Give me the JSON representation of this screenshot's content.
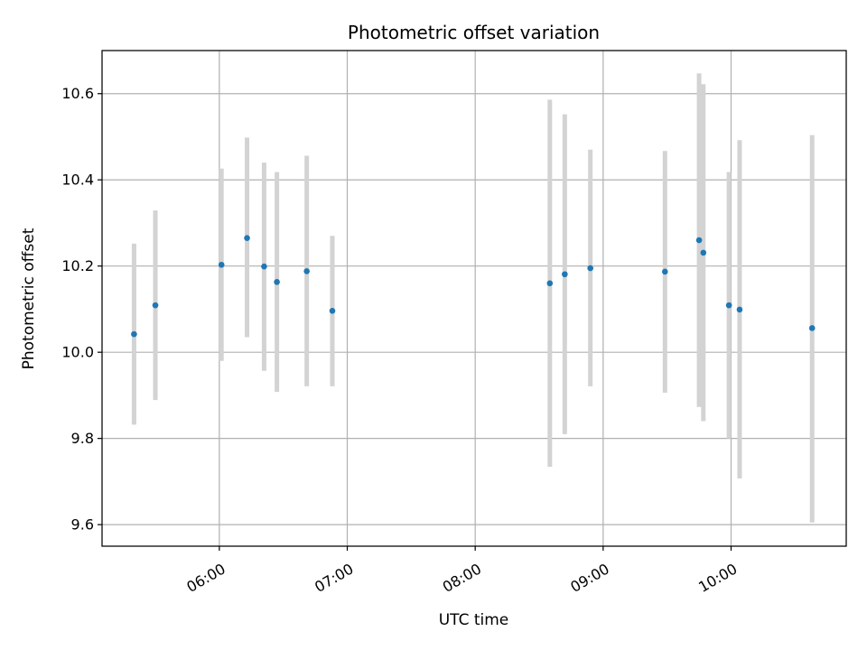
{
  "chart_data": {
    "type": "scatter",
    "title": "Photometric offset variation",
    "xlabel": "UTC time",
    "ylabel": "Photometric offset",
    "xlim": [
      "05:05",
      "10:54"
    ],
    "ylim": [
      9.55,
      10.7
    ],
    "grid": true,
    "x_ticks": [
      "06:00",
      "07:00",
      "08:00",
      "09:00",
      "10:00"
    ],
    "y_ticks": [
      9.6,
      9.8,
      10.0,
      10.2,
      10.4,
      10.6
    ],
    "colors": {
      "point": "#1f77b4",
      "errorbar": "#d3d3d3",
      "grid": "#b0b0b0"
    },
    "points": [
      {
        "x": "05:20",
        "y": 10.042,
        "ylow": 9.832,
        "yhigh": 10.252
      },
      {
        "x": "05:30",
        "y": 10.109,
        "ylow": 9.889,
        "yhigh": 10.329
      },
      {
        "x": "06:01",
        "y": 10.203,
        "ylow": 9.98,
        "yhigh": 10.426
      },
      {
        "x": "06:13",
        "y": 10.265,
        "ylow": 10.035,
        "yhigh": 10.498
      },
      {
        "x": "06:21",
        "y": 10.199,
        "ylow": 9.957,
        "yhigh": 10.44
      },
      {
        "x": "06:27",
        "y": 10.163,
        "ylow": 9.908,
        "yhigh": 10.418
      },
      {
        "x": "06:41",
        "y": 10.188,
        "ylow": 9.921,
        "yhigh": 10.456
      },
      {
        "x": "06:53",
        "y": 10.096,
        "ylow": 9.921,
        "yhigh": 10.27
      },
      {
        "x": "08:35",
        "y": 10.16,
        "ylow": 9.734,
        "yhigh": 10.586
      },
      {
        "x": "08:42",
        "y": 10.181,
        "ylow": 9.81,
        "yhigh": 10.552
      },
      {
        "x": "08:54",
        "y": 10.195,
        "ylow": 9.921,
        "yhigh": 10.47
      },
      {
        "x": "09:29",
        "y": 10.187,
        "ylow": 9.906,
        "yhigh": 10.467
      },
      {
        "x": "09:45",
        "y": 10.26,
        "ylow": 9.873,
        "yhigh": 10.647
      },
      {
        "x": "09:47",
        "y": 10.231,
        "ylow": 9.84,
        "yhigh": 10.622
      },
      {
        "x": "09:59",
        "y": 10.109,
        "ylow": 9.8,
        "yhigh": 10.418
      },
      {
        "x": "10:04",
        "y": 10.099,
        "ylow": 9.707,
        "yhigh": 10.492
      },
      {
        "x": "10:38",
        "y": 10.056,
        "ylow": 9.605,
        "yhigh": 10.504
      }
    ]
  }
}
